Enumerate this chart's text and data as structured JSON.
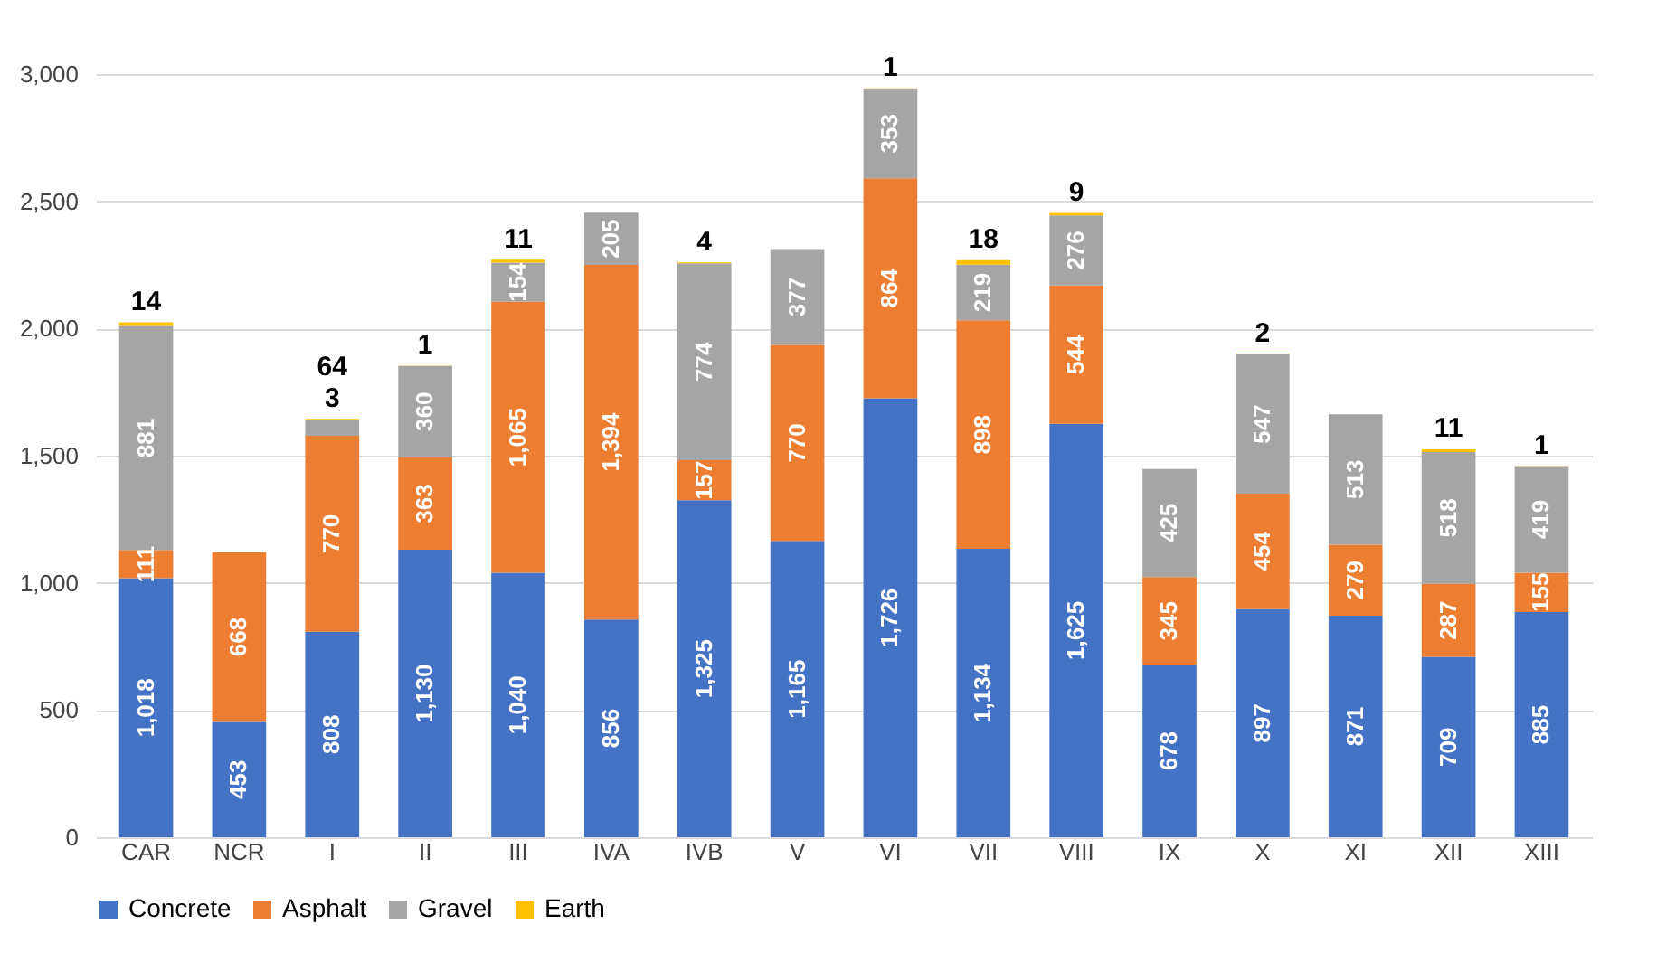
{
  "chart_data": {
    "type": "bar",
    "stacked": true,
    "categories": [
      "CAR",
      "NCR",
      "I",
      "II",
      "III",
      "IVA",
      "IVB",
      "V",
      "VI",
      "VII",
      "VIII",
      "IX",
      "X",
      "XI",
      "XII",
      "XIII"
    ],
    "series": [
      {
        "name": "Concrete",
        "color": "#4472c4",
        "values": [
          1018,
          453,
          808,
          1130,
          1040,
          856,
          1325,
          1165,
          1726,
          1134,
          1625,
          678,
          897,
          871,
          709,
          885
        ],
        "value_labels": [
          "1,018",
          "453",
          "808",
          "1,130",
          "1,040",
          "856",
          "1,325",
          "1,165",
          "1,726",
          "1,134",
          "1,625",
          "678",
          "897",
          "871",
          "709",
          "885"
        ]
      },
      {
        "name": "Asphalt",
        "color": "#ed7d31",
        "values": [
          111,
          668,
          770,
          363,
          1065,
          1394,
          157,
          770,
          864,
          898,
          544,
          345,
          454,
          279,
          287,
          155
        ],
        "value_labels": [
          "111",
          "668",
          "770",
          "363",
          "1,065",
          "1,394",
          "157",
          "770",
          "864",
          "898",
          "544",
          "345",
          "454",
          "279",
          "287",
          "155"
        ]
      },
      {
        "name": "Gravel",
        "color": "#a5a5a5",
        "values": [
          881,
          null,
          64,
          360,
          154,
          205,
          774,
          377,
          353,
          219,
          276,
          425,
          547,
          513,
          518,
          419
        ]
      },
      {
        "name": "Earth",
        "color": "#ffc000",
        "values": [
          14,
          null,
          3,
          1,
          11,
          null,
          4,
          null,
          1,
          18,
          9,
          null,
          2,
          null,
          11,
          1
        ]
      }
    ],
    "ylim": [
      0,
      3000
    ],
    "yticks": [
      0,
      {
        "value": 500,
        "label": "500"
      },
      {
        "value": 1000,
        "label": "1,000"
      },
      {
        "value": 1500,
        "label": "1,500"
      },
      {
        "value": 2000,
        "label": "2,000"
      },
      {
        "value": 2500,
        "label": "2,500"
      },
      {
        "value": 3000,
        "label": "3,000"
      }
    ],
    "grid": "y",
    "legend": "bottom",
    "data_labels": true
  }
}
